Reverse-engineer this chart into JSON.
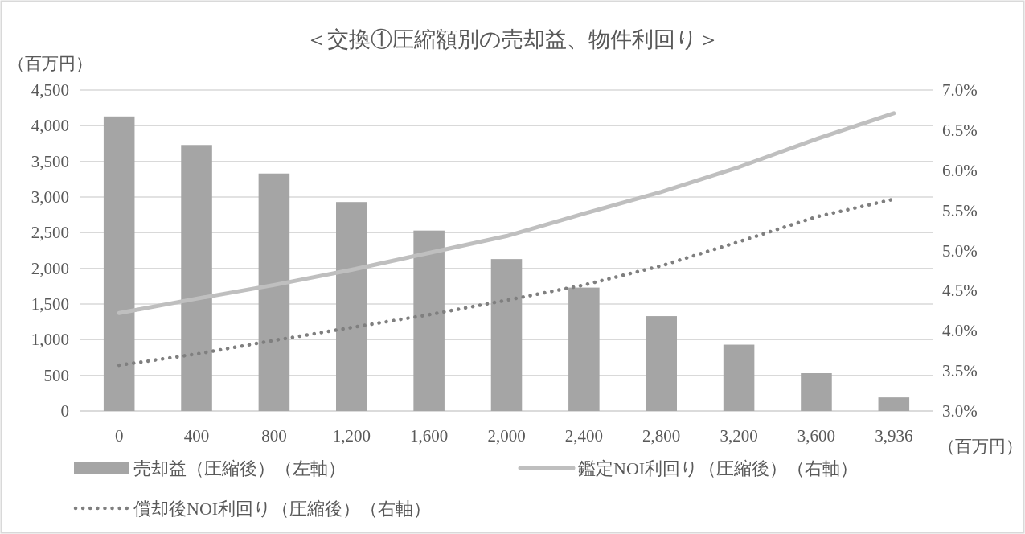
{
  "chart_data": {
    "type": "bar",
    "title": "＜交換①圧縮額別の売却益、物件利回り＞",
    "ylabel": "（百万円）",
    "xlabel": "（百万円）",
    "categories": [
      "0",
      "400",
      "800",
      "1,200",
      "1,600",
      "2,000",
      "2,400",
      "2,800",
      "3,200",
      "3,600",
      "3,936"
    ],
    "series": [
      {
        "name": "売却益（圧縮後）（左軸）",
        "color": "#a5a5a5",
        "values": [
          4130,
          3730,
          3330,
          2930,
          2530,
          2130,
          1730,
          1330,
          930,
          530,
          190
        ]
      },
      {
        "name": "鑑定NOI利回り（圧縮後）（右軸）",
        "type": "line",
        "axis": "y2",
        "line_style": "solid",
        "color": "#bfbfbf",
        "values": [
          4.22,
          4.4,
          4.57,
          4.76,
          4.97,
          5.18,
          5.46,
          5.73,
          6.04,
          6.39,
          6.71
        ]
      },
      {
        "name": "償却後NOI利回り（圧縮後）（右軸）",
        "type": "line",
        "axis": "y2",
        "line_style": "dotted",
        "color": "#7f7f7f",
        "values": [
          3.57,
          3.71,
          3.88,
          4.04,
          4.2,
          4.38,
          4.57,
          4.81,
          5.11,
          5.42,
          5.64
        ]
      }
    ],
    "ylim": [
      0,
      4500
    ],
    "yticks": [
      0,
      500,
      {
        "value": 1000,
        "label": "1,000"
      },
      {
        "value": 1500,
        "label": "1,500"
      },
      {
        "value": 2000,
        "label": "2,000"
      },
      {
        "value": 2500,
        "label": "2,500"
      },
      {
        "value": 3000,
        "label": "3,000"
      },
      {
        "value": 3500,
        "label": "3,500"
      },
      {
        "value": 4000,
        "label": "4,000"
      },
      {
        "value": 4500,
        "label": "4,500"
      }
    ],
    "y2lim": [
      3,
      7
    ],
    "y2ticks": [
      {
        "value": 3,
        "label": "3.0%"
      },
      {
        "value": 3.5,
        "label": "3.5%"
      },
      {
        "value": 4,
        "label": "4.0%"
      },
      {
        "value": 4.5,
        "label": "4.5%"
      },
      {
        "value": 5,
        "label": "5.0%"
      },
      {
        "value": 5.5,
        "label": "5.5%"
      },
      {
        "value": 6,
        "label": "6.0%"
      },
      {
        "value": 6.5,
        "label": "6.5%"
      },
      {
        "value": 7,
        "label": "7.0%"
      }
    ],
    "grid": "y",
    "legend": "bottom"
  }
}
